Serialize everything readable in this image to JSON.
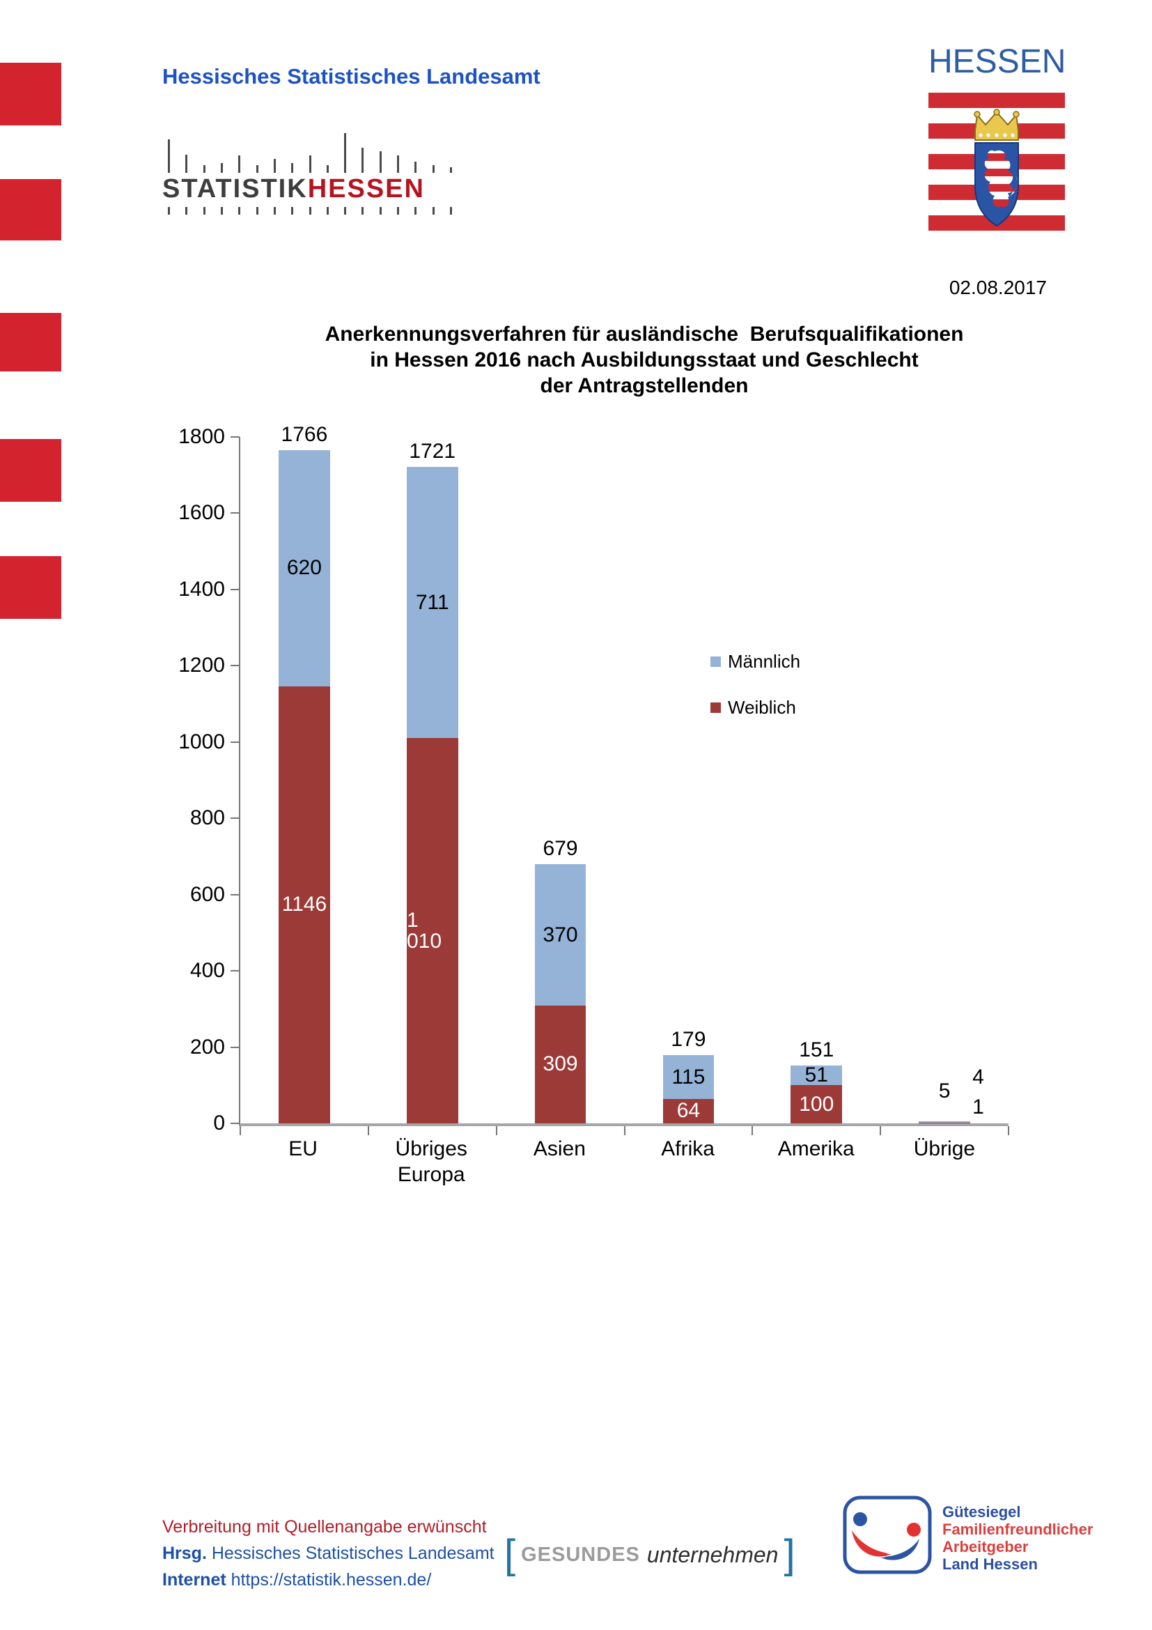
{
  "page": {
    "date": "02.08.2017"
  },
  "header": {
    "office_name": "Hessisches Statistisches Landesamt",
    "statistik_logo": {
      "word_gray": "STATISTIK",
      "word_red": "HESSEN",
      "top_tick_heights": [
        48,
        26,
        11,
        14,
        25,
        11,
        20,
        14,
        25,
        11,
        57,
        36,
        31,
        25,
        16,
        11,
        8
      ],
      "bottom_tick_count": 17
    },
    "hessen_logo": {
      "wordmark": "HESSEN"
    }
  },
  "chart_data": {
    "type": "bar",
    "stacked": true,
    "title_lines": [
      "Anerkennungsverfahren für ausländische  Berufsqualifikationen",
      "in Hessen 2016 nach Ausbildungsstaat und Geschlecht",
      "der Antragstellenden"
    ],
    "categories": [
      "EU",
      "Übriges\nEuropa",
      "Asien",
      "Afrika",
      "Amerika",
      "Übrige"
    ],
    "series": [
      {
        "name": "Männlich",
        "color": "#95b3d7",
        "label_color": "#000000",
        "values": [
          620,
          711,
          370,
          115,
          51,
          4
        ],
        "labels": [
          "620",
          "711",
          "370",
          "115",
          "51",
          "4"
        ]
      },
      {
        "name": "Weiblich",
        "color": "#9c3a37",
        "label_color": "#ffffff",
        "values": [
          1146,
          1010,
          309,
          64,
          100,
          1
        ],
        "labels": [
          "1146",
          "1 010",
          "309",
          "64",
          "100",
          "1"
        ]
      }
    ],
    "totals": [
      1766,
      1721,
      679,
      179,
      151,
      5
    ],
    "total_labels": [
      "1766",
      "1721",
      "679",
      "179",
      "151",
      "5"
    ],
    "ylim": [
      0,
      1800
    ],
    "ytick_step": 200,
    "grid": false,
    "legend_position": "middle-right",
    "outside_label_threshold": 20
  },
  "footer": {
    "note": "Verbreitung mit Quellenangabe erwünscht",
    "publisher_label": "Hrsg.",
    "publisher": " Hessisches Statistisches Landesamt",
    "internet_label": "Internet",
    "internet_url": " https://statistik.hessen.de/"
  },
  "badges": {
    "gesundes": {
      "bracket_left": "[",
      "word1": "GESUNDES",
      "word2": "unternehmen",
      "bracket_right": "]"
    },
    "guetesiegel": {
      "line1": "Gütesiegel",
      "line2": "Familienfreundlicher",
      "line3": "Arbeitgeber",
      "line4": "Land Hessen"
    }
  },
  "colors": {
    "maennlich_blue": "#95b3d7",
    "weiblich_red": "#9c3a37",
    "header_blue": "#1d52c4",
    "footer_blue": "#1d4fa6",
    "footer_red": "#b01e28",
    "hessen_red": "#d2232e",
    "axis_gray": "#767676"
  }
}
